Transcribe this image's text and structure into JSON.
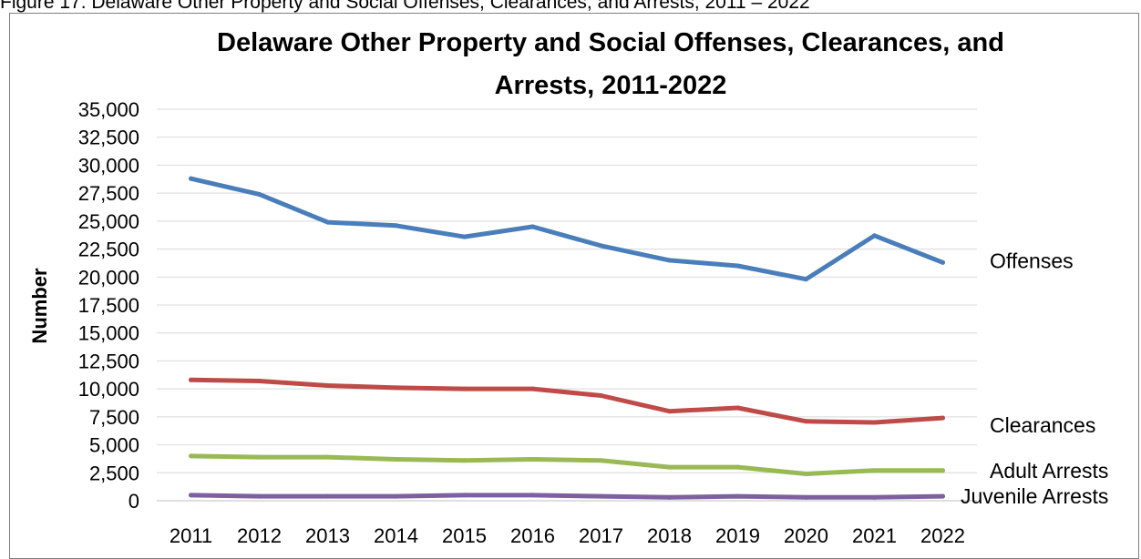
{
  "caption": "Figure 17. Delaware Other Property and Social Offenses, Clearances, and Arrests, 2011 – 2022",
  "chart_data": {
    "type": "line",
    "title_line1": "Delaware Other Property and Social Offenses, Clearances, and",
    "title_line2": "Arrests, 2011-2022",
    "xlabel": "",
    "ylabel": "Number",
    "ylim": [
      0,
      35000
    ],
    "yticks": [
      0,
      2500,
      5000,
      7500,
      10000,
      12500,
      15000,
      17500,
      20000,
      22500,
      25000,
      27500,
      30000,
      32500,
      35000
    ],
    "ytick_labels": [
      "0",
      "2,500",
      "5,000",
      "7,500",
      "10,000",
      "12,500",
      "15,000",
      "17,500",
      "20,000",
      "22,500",
      "25,000",
      "27,500",
      "30,000",
      "32,500",
      "35,000"
    ],
    "categories": [
      "2011",
      "2012",
      "2013",
      "2014",
      "2015",
      "2016",
      "2017",
      "2018",
      "2019",
      "2020",
      "2021",
      "2022"
    ],
    "grid": true,
    "legend": "direct labels at line ends (right)",
    "series": [
      {
        "name": "Offenses",
        "color": "#4a7ebb",
        "values": [
          28800,
          27400,
          24900,
          24600,
          23600,
          24500,
          22800,
          21500,
          21000,
          19800,
          23700,
          21300
        ]
      },
      {
        "name": "Clearances",
        "color": "#be4b48",
        "values": [
          10800,
          10700,
          10300,
          10100,
          10000,
          10000,
          9400,
          8000,
          8300,
          7100,
          7000,
          7400
        ]
      },
      {
        "name": "Adult Arrests",
        "color": "#98b954",
        "values": [
          4000,
          3900,
          3900,
          3700,
          3600,
          3700,
          3600,
          3000,
          3000,
          2400,
          2700,
          2700
        ]
      },
      {
        "name": "Juvenile Arrests",
        "color": "#7d60a0",
        "values": [
          500,
          400,
          400,
          400,
          500,
          500,
          400,
          300,
          400,
          300,
          300,
          400
        ]
      }
    ]
  }
}
